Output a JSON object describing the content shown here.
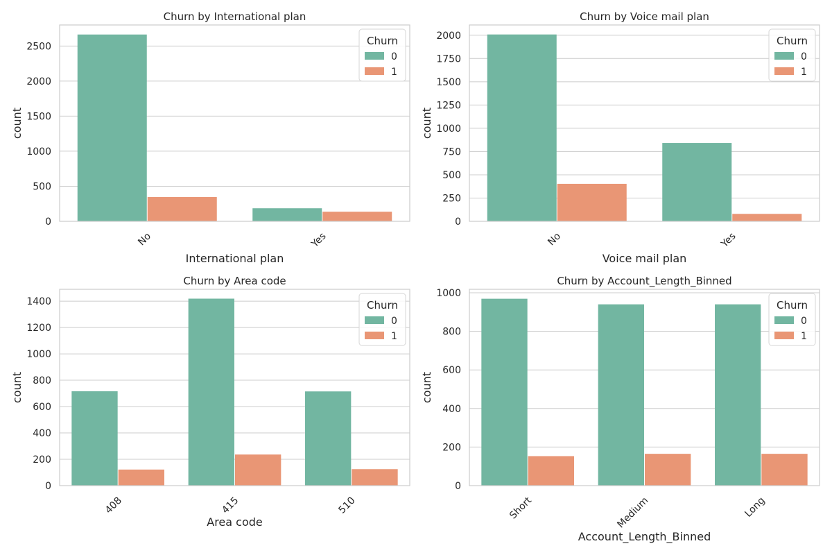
{
  "chart_data": [
    {
      "type": "bar",
      "title": "Churn by International plan",
      "xlabel": "International plan",
      "ylabel": "count",
      "categories": [
        "No",
        "Yes"
      ],
      "series": [
        {
          "name": "0",
          "values": [
            2664,
            186
          ]
        },
        {
          "name": "1",
          "values": [
            346,
            137
          ]
        }
      ],
      "ylim": [
        0,
        2800
      ],
      "yticks": [
        0,
        500,
        1000,
        1500,
        2000,
        2500
      ],
      "legend": {
        "title": "Churn",
        "position": "top-right"
      },
      "grid": true
    },
    {
      "type": "bar",
      "title": "Churn by Voice mail plan",
      "xlabel": "Voice mail plan",
      "ylabel": "count",
      "categories": [
        "No",
        "Yes"
      ],
      "series": [
        {
          "name": "0",
          "values": [
            2008,
            842
          ]
        },
        {
          "name": "1",
          "values": [
            403,
            80
          ]
        }
      ],
      "ylim": [
        0,
        2110
      ],
      "yticks": [
        0,
        250,
        500,
        750,
        1000,
        1250,
        1500,
        1750,
        2000
      ],
      "legend": {
        "title": "Churn",
        "position": "top-right"
      },
      "grid": true
    },
    {
      "type": "bar",
      "title": "Churn by Area code",
      "xlabel": "Area code",
      "ylabel": "count",
      "categories": [
        "408",
        "415",
        "510"
      ],
      "series": [
        {
          "name": "0",
          "values": [
            716,
            1419,
            715
          ]
        },
        {
          "name": "1",
          "values": [
            122,
            236,
            125
          ]
        }
      ],
      "ylim": [
        0,
        1490
      ],
      "yticks": [
        0,
        200,
        400,
        600,
        800,
        1000,
        1200,
        1400
      ],
      "legend": {
        "title": "Churn",
        "position": "top-right"
      },
      "grid": true
    },
    {
      "type": "bar",
      "title": "Churn by Account_Length_Binned",
      "xlabel": "Account_Length_Binned",
      "ylabel": "count",
      "categories": [
        "Short",
        "Medium",
        "Long"
      ],
      "series": [
        {
          "name": "0",
          "values": [
            969,
            940,
            940
          ]
        },
        {
          "name": "1",
          "values": [
            153,
            165,
            165
          ]
        }
      ],
      "ylim": [
        0,
        1018
      ],
      "yticks": [
        0,
        200,
        400,
        600,
        800,
        1000
      ],
      "legend": {
        "title": "Churn",
        "position": "top-right"
      },
      "grid": true
    }
  ],
  "colors": {
    "series": [
      "#72b6a1",
      "#e99675"
    ],
    "grid": "#cccccc",
    "spine": "#cccccc",
    "text": "#262626"
  }
}
